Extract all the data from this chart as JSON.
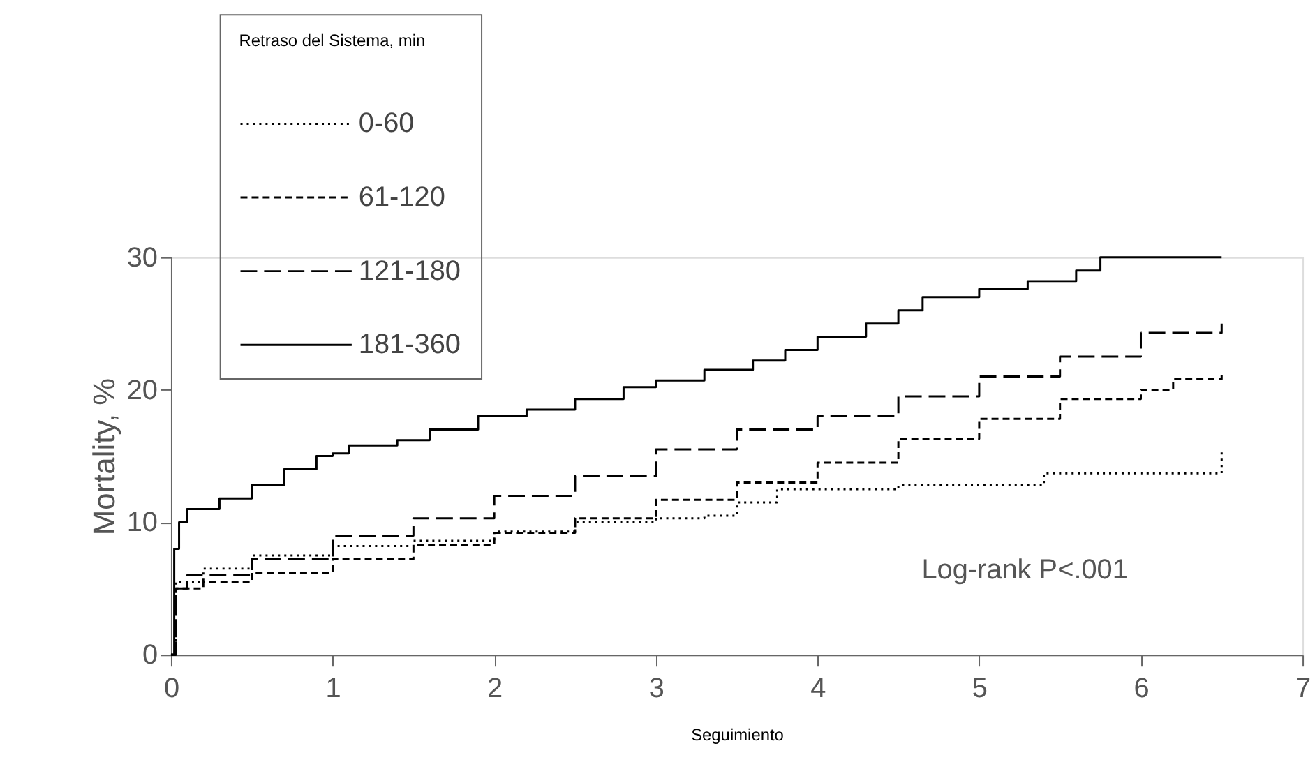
{
  "chart_data": {
    "type": "step",
    "xlabel": "Seguimiento",
    "ylabel": "Mortality, %",
    "legend_title": "Retraso del Sistema, min",
    "xlim": [
      0,
      7
    ],
    "xticks": [
      0,
      1,
      2,
      3,
      4,
      5,
      6,
      7
    ],
    "ylim": [
      0,
      30
    ],
    "yticks": [
      0,
      10,
      20,
      30
    ],
    "grid": false,
    "legend": "top left",
    "annotations": [
      "Log-rank P<.001"
    ],
    "series": [
      {
        "name": "0-60",
        "color": "#000000",
        "line_style": "dotted",
        "x": [
          0,
          0.03,
          0.2,
          0.5,
          1,
          1.5,
          2,
          2.5,
          3,
          3.3,
          3.5,
          3.75,
          4.5,
          5.4,
          6.5,
          6.5
        ],
        "values": [
          0,
          5.5,
          6.5,
          7.5,
          8.2,
          8.6,
          9.3,
          10,
          10.3,
          10.5,
          11.5,
          12.5,
          12.8,
          13.7,
          13.7,
          15.5
        ]
      },
      {
        "name": "61-120",
        "color": "#000000",
        "line_style": "dashed",
        "x": [
          0,
          0.03,
          0.2,
          0.5,
          1,
          1.5,
          2,
          2.5,
          3,
          3.5,
          4,
          4.5,
          5,
          5.5,
          6,
          6.2,
          6.5
        ],
        "values": [
          0,
          5,
          5.5,
          6.2,
          7.2,
          8.3,
          9.2,
          10.3,
          11.7,
          13,
          14.5,
          16.3,
          17.8,
          19.3,
          20,
          20.8,
          21.3
        ]
      },
      {
        "name": "121-180",
        "color": "#000000",
        "line_style": "dashed",
        "x": [
          0,
          0.03,
          0.1,
          0.5,
          1,
          1.5,
          2,
          2.5,
          3,
          3.5,
          4,
          4.5,
          5,
          5.5,
          6,
          6.5
        ],
        "values": [
          0,
          5,
          6,
          7.2,
          9,
          10.3,
          12,
          13.5,
          15.5,
          17,
          18,
          19.5,
          21,
          22.5,
          24.3,
          25
        ]
      },
      {
        "name": "181-360",
        "color": "#000000",
        "line_style": "solid",
        "x": [
          0,
          0.02,
          0.05,
          0.1,
          0.3,
          0.5,
          0.7,
          0.9,
          1,
          1.1,
          1.4,
          1.6,
          1.9,
          2.2,
          2.5,
          2.8,
          3,
          3.3,
          3.6,
          3.8,
          4,
          4.3,
          4.5,
          4.65,
          5,
          5.3,
          5.6,
          5.75,
          6.5
        ],
        "values": [
          0,
          8,
          10,
          11,
          11.8,
          12.8,
          14,
          15,
          15.2,
          15.8,
          16.2,
          17,
          18,
          18.5,
          19.3,
          20.2,
          20.7,
          21.5,
          22.2,
          23,
          24,
          25,
          26,
          27,
          27.6,
          28.2,
          29,
          30,
          30
        ]
      }
    ]
  }
}
